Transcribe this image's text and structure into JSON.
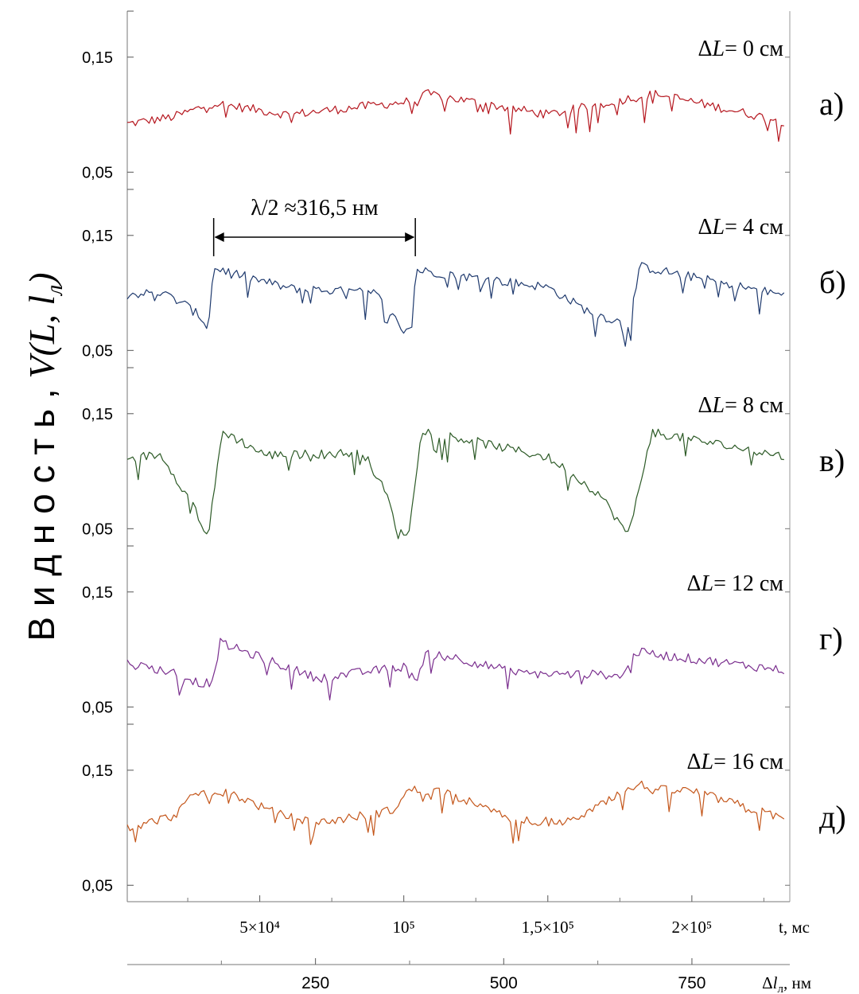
{
  "chart_data": {
    "type": "line",
    "ylabel": {
      "prefix": "В и д н о с т ь ,",
      "math_lead": "V(L, ",
      "math_var": "l",
      "math_sub": "л",
      "math_close": ")"
    },
    "x_top_axis": {
      "unit_label": "t, мс",
      "ticks": [
        {
          "value": 50000,
          "label": "5×10⁴"
        },
        {
          "value": 100000,
          "label": "10⁵"
        },
        {
          "value": 150000,
          "label": "1,5×10⁵"
        },
        {
          "value": 200000,
          "label": "2×10⁵"
        }
      ],
      "xlim": [
        4000,
        234000
      ]
    },
    "x_bottom_axis": {
      "unit_label_delta": "Δ",
      "unit_label_var": "l",
      "unit_label_sub": "л",
      "unit_label_tail": ", нм",
      "ticks": [
        {
          "value": 250,
          "label": "250"
        },
        {
          "value": 500,
          "label": "500"
        },
        {
          "value": 750,
          "label": "750"
        }
      ],
      "xlim": [
        0,
        880
      ]
    },
    "y_ticks": [
      {
        "value": 0.15,
        "label": "0,15"
      },
      {
        "value": 0.05,
        "label": "0,05"
      }
    ],
    "annotation": {
      "text": "λ/2 ≈316,5 нм",
      "x_start_t": 34000,
      "x_end_t": 104000
    },
    "panels": [
      {
        "letter": "а)",
        "title_prefix": "Δ",
        "title_var": "L",
        "title_rest": "= 0 см",
        "color": "#b5161e",
        "ylim": [
          0.035,
          0.19
        ],
        "series": [
          {
            "t": [
              4000,
              20000,
              34000,
              60000,
              104000,
              108000,
              150000,
              178000,
              188000,
              232000
            ],
            "v": [
              0.092,
              0.098,
              0.11,
              0.1,
              0.112,
              0.118,
              0.1,
              0.114,
              0.118,
              0.094
            ]
          }
        ]
      },
      {
        "letter": "б)",
        "title_prefix": "Δ",
        "title_var": "L",
        "title_rest": "= 4 см",
        "color": "#1f3a6e",
        "ylim": [
          0.035,
          0.19
        ],
        "series": [
          {
            "t": [
              4000,
              16000,
              24000,
              30000,
              32000,
              34000,
              60000,
              90000,
              96000,
              100000,
              103000,
              104000,
              150000,
              164000,
              178000,
              182000,
              232000
            ],
            "v": [
              0.099,
              0.1,
              0.09,
              0.078,
              0.068,
              0.122,
              0.104,
              0.1,
              0.08,
              0.068,
              0.07,
              0.12,
              0.105,
              0.084,
              0.072,
              0.123,
              0.098
            ]
          }
        ]
      },
      {
        "letter": "в)",
        "title_prefix": "Δ",
        "title_var": "L",
        "title_rest": "= 8 см",
        "color": "#2c5a26",
        "ylim": [
          0.035,
          0.19
        ],
        "series": [
          {
            "t": [
              4000,
              16000,
              22000,
              28000,
              32000,
              37000,
              52000,
              86000,
              94000,
              98000,
              102000,
              106000,
              150000,
              168000,
              178000,
              186000,
              232000
            ],
            "v": [
              0.112,
              0.114,
              0.09,
              0.065,
              0.042,
              0.135,
              0.114,
              0.116,
              0.08,
              0.045,
              0.048,
              0.136,
              0.112,
              0.08,
              0.044,
              0.134,
              0.113
            ]
          }
        ]
      },
      {
        "letter": "г)",
        "title_prefix": "Δ",
        "title_var": "L",
        "title_rest": "= 12 см",
        "color": "#7a2e8e",
        "ylim": [
          0.035,
          0.19
        ],
        "series": [
          {
            "t": [
              4000,
              20000,
              30000,
              34000,
              36000,
              70000,
              100000,
              104000,
              108000,
              140000,
              176000,
              180000,
              232000
            ],
            "v": [
              0.088,
              0.08,
              0.07,
              0.072,
              0.106,
              0.075,
              0.085,
              0.072,
              0.099,
              0.079,
              0.078,
              0.098,
              0.082
            ]
          }
        ]
      },
      {
        "letter": "д)",
        "title_prefix": "Δ",
        "title_var": "L",
        "title_rest": "= 16 см",
        "color": "#c4561a",
        "ylim": [
          0.035,
          0.19
        ],
        "series": [
          {
            "t": [
              4000,
              20000,
              28000,
              40000,
              56000,
              70000,
              96000,
              102000,
              114000,
              138000,
              158000,
              182000,
              186000,
              200000,
              232000
            ],
            "v": [
              0.1,
              0.11,
              0.13,
              0.13,
              0.112,
              0.104,
              0.115,
              0.133,
              0.132,
              0.106,
              0.105,
              0.138,
              0.133,
              0.132,
              0.108
            ]
          }
        ]
      }
    ]
  }
}
